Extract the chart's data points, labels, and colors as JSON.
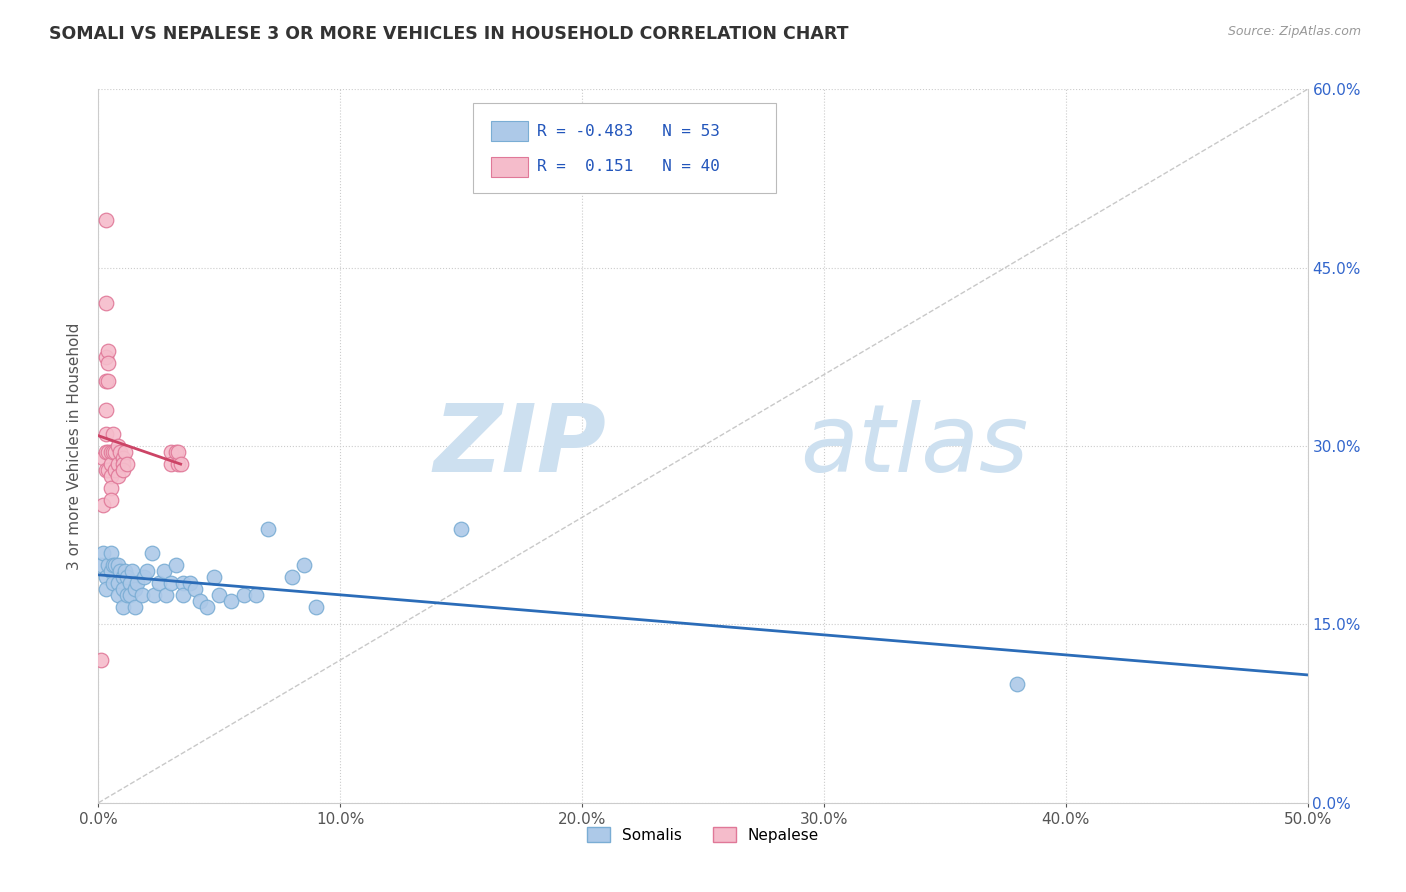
{
  "title": "SOMALI VS NEPALESE 3 OR MORE VEHICLES IN HOUSEHOLD CORRELATION CHART",
  "source": "Source: ZipAtlas.com",
  "ylabel": "3 or more Vehicles in Household",
  "xlim": [
    0.0,
    0.5
  ],
  "ylim": [
    0.0,
    0.6
  ],
  "xticks": [
    0.0,
    0.1,
    0.2,
    0.3,
    0.4,
    0.5
  ],
  "yticks": [
    0.0,
    0.15,
    0.3,
    0.45,
    0.6
  ],
  "somali_color": "#adc9e8",
  "somali_edge_color": "#7aadd4",
  "nepalese_color": "#f5bccb",
  "nepalese_edge_color": "#e07898",
  "trend_somali_color": "#2b6cb8",
  "trend_nepalese_color": "#cc4466",
  "trend_ref_color": "#bbbbbb",
  "R_somali": -0.483,
  "N_somali": 53,
  "R_nepalese": 0.151,
  "N_nepalese": 40,
  "legend_color": "#2255bb",
  "watermark_color": "#cde0f0",
  "somali_points": [
    [
      0.001,
      0.2
    ],
    [
      0.002,
      0.21
    ],
    [
      0.003,
      0.19
    ],
    [
      0.003,
      0.18
    ],
    [
      0.004,
      0.2
    ],
    [
      0.005,
      0.21
    ],
    [
      0.005,
      0.195
    ],
    [
      0.006,
      0.2
    ],
    [
      0.006,
      0.185
    ],
    [
      0.007,
      0.2
    ],
    [
      0.008,
      0.2
    ],
    [
      0.008,
      0.185
    ],
    [
      0.008,
      0.175
    ],
    [
      0.009,
      0.195
    ],
    [
      0.01,
      0.19
    ],
    [
      0.01,
      0.18
    ],
    [
      0.01,
      0.165
    ],
    [
      0.011,
      0.195
    ],
    [
      0.012,
      0.19
    ],
    [
      0.012,
      0.175
    ],
    [
      0.013,
      0.185
    ],
    [
      0.013,
      0.175
    ],
    [
      0.014,
      0.195
    ],
    [
      0.015,
      0.18
    ],
    [
      0.015,
      0.165
    ],
    [
      0.016,
      0.185
    ],
    [
      0.018,
      0.175
    ],
    [
      0.019,
      0.19
    ],
    [
      0.02,
      0.195
    ],
    [
      0.022,
      0.21
    ],
    [
      0.023,
      0.175
    ],
    [
      0.025,
      0.185
    ],
    [
      0.027,
      0.195
    ],
    [
      0.028,
      0.175
    ],
    [
      0.03,
      0.185
    ],
    [
      0.032,
      0.2
    ],
    [
      0.035,
      0.185
    ],
    [
      0.035,
      0.175
    ],
    [
      0.038,
      0.185
    ],
    [
      0.04,
      0.18
    ],
    [
      0.042,
      0.17
    ],
    [
      0.045,
      0.165
    ],
    [
      0.048,
      0.19
    ],
    [
      0.05,
      0.175
    ],
    [
      0.055,
      0.17
    ],
    [
      0.06,
      0.175
    ],
    [
      0.065,
      0.175
    ],
    [
      0.07,
      0.23
    ],
    [
      0.08,
      0.19
    ],
    [
      0.085,
      0.2
    ],
    [
      0.09,
      0.165
    ],
    [
      0.15,
      0.23
    ],
    [
      0.38,
      0.1
    ]
  ],
  "nepalese_points": [
    [
      0.001,
      0.12
    ],
    [
      0.002,
      0.29
    ],
    [
      0.002,
      0.25
    ],
    [
      0.003,
      0.49
    ],
    [
      0.003,
      0.42
    ],
    [
      0.003,
      0.375
    ],
    [
      0.003,
      0.355
    ],
    [
      0.003,
      0.33
    ],
    [
      0.003,
      0.31
    ],
    [
      0.003,
      0.295
    ],
    [
      0.003,
      0.28
    ],
    [
      0.004,
      0.38
    ],
    [
      0.004,
      0.37
    ],
    [
      0.004,
      0.355
    ],
    [
      0.004,
      0.295
    ],
    [
      0.004,
      0.28
    ],
    [
      0.005,
      0.295
    ],
    [
      0.005,
      0.285
    ],
    [
      0.005,
      0.275
    ],
    [
      0.005,
      0.265
    ],
    [
      0.005,
      0.255
    ],
    [
      0.006,
      0.31
    ],
    [
      0.006,
      0.295
    ],
    [
      0.007,
      0.295
    ],
    [
      0.007,
      0.28
    ],
    [
      0.008,
      0.3
    ],
    [
      0.008,
      0.285
    ],
    [
      0.008,
      0.275
    ],
    [
      0.009,
      0.295
    ],
    [
      0.01,
      0.29
    ],
    [
      0.01,
      0.285
    ],
    [
      0.01,
      0.28
    ],
    [
      0.011,
      0.295
    ],
    [
      0.012,
      0.285
    ],
    [
      0.03,
      0.295
    ],
    [
      0.03,
      0.285
    ],
    [
      0.032,
      0.295
    ],
    [
      0.033,
      0.285
    ],
    [
      0.033,
      0.295
    ],
    [
      0.034,
      0.285
    ]
  ],
  "somali_trend_x": [
    0.0,
    0.5
  ],
  "nepalese_trend_x": [
    0.0,
    0.034
  ],
  "figsize": [
    14.06,
    8.92
  ],
  "dpi": 100
}
